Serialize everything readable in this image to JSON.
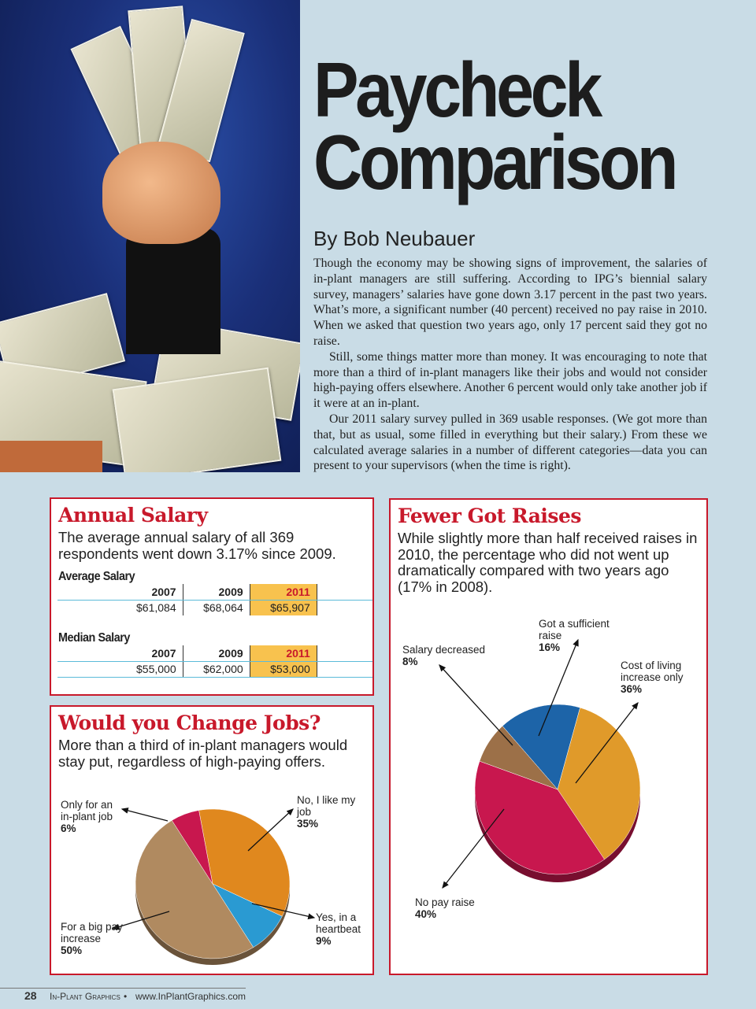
{
  "header": {
    "title_line1": "Paycheck",
    "title_line2": "Comparison",
    "byline": "By Bob Neubauer"
  },
  "article": {
    "paragraphs": [
      "Though the economy may be showing signs of improvement, the salaries of in-plant managers are still suffering. According to IPG’s biennial salary survey, managers’ salaries have gone down 3.17 percent in the past two years. What’s more, a significant number (40 percent) received no pay raise in 2010. When we asked that question two years ago, only 17 percent said they got no raise.",
      "Still, some things matter more than money. It was encouraging to note that more than a third of in-plant managers like their jobs and would not consider high-paying offers elsewhere. Another 6 percent would only take another job if it were at an in-plant.",
      "Our 2011 salary survey pulled in 369 usable responses. (We got more than that, but as usual, some filled in everything but their salary.) From these we calculated average salaries in a number of different categories—data you can present to your supervisors (when the time is right)."
    ]
  },
  "annual_salary": {
    "title": "Annual Salary",
    "lead": "The average annual salary of all 369 respondents went down 3.17% since 2009.",
    "average": {
      "label": "Average Salary",
      "years": [
        "2007",
        "2009",
        "2011"
      ],
      "values": [
        "$61,084",
        "$68,064",
        "$65,907"
      ]
    },
    "median": {
      "label": "Median Salary",
      "years": [
        "2007",
        "2009",
        "2011"
      ],
      "values": [
        "$55,000",
        "$62,000",
        "$53,000"
      ]
    }
  },
  "change_jobs": {
    "title": "Would you Change Jobs?",
    "lead": "More than a third of in-plant managers would stay put, regardless of high-paying offers."
  },
  "raises": {
    "title": "Fewer Got Raises",
    "lead": "While slightly more than half received raises in 2010, the percentage who did not went up dramatically compared with two years ago (17% in 2008)."
  },
  "chart_data": [
    {
      "type": "pie",
      "title": "Would you Change Jobs?",
      "slices": [
        {
          "label": "No, I like my job",
          "value": 35,
          "text": "35%",
          "color": "#e0881e"
        },
        {
          "label": "Yes, in a heartbeat",
          "value": 9,
          "text": "9%",
          "color": "#2a9ad2"
        },
        {
          "label": "For a big pay increase",
          "value": 50,
          "text": "50%",
          "color": "#b08a60"
        },
        {
          "label": "Only for an in-plant job",
          "value": 6,
          "text": "6%",
          "color": "#c8174e"
        }
      ]
    },
    {
      "type": "pie",
      "title": "Fewer Got Raises",
      "slices": [
        {
          "label": "Got a sufficient raise",
          "value": 16,
          "text": "16%",
          "color": "#1d64a8"
        },
        {
          "label": "Cost of living increase only",
          "value": 36,
          "text": "36%",
          "color": "#e09a2a"
        },
        {
          "label": "No pay raise",
          "value": 40,
          "text": "40%",
          "color": "#c8174e"
        },
        {
          "label": "Salary decreased",
          "value": 8,
          "text": "8%",
          "color": "#9c7048"
        }
      ]
    }
  ],
  "footer": {
    "page": "28",
    "publication": "In-Plant Graphics",
    "separator": "•",
    "url": "www.InPlantGraphics.com"
  }
}
